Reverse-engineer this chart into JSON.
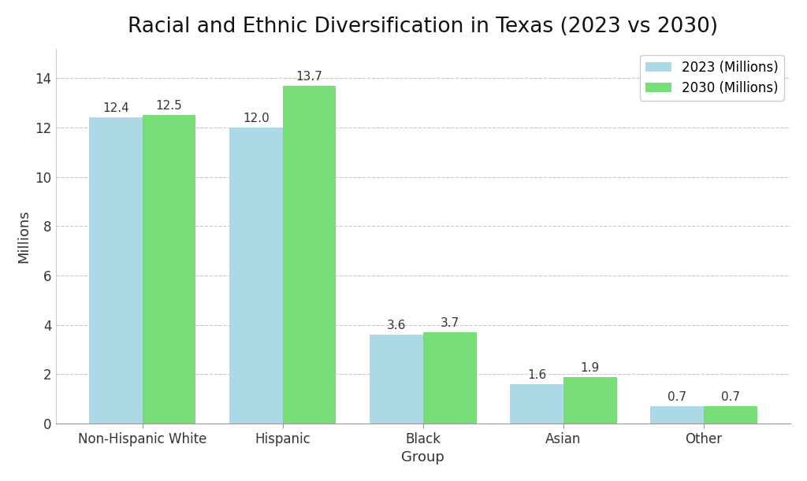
{
  "title": "Racial and Ethnic Diversification in Texas (2023 vs 2030)",
  "xlabel": "Group",
  "ylabel": "Millions",
  "categories": [
    "Non-Hispanic White",
    "Hispanic",
    "Black",
    "Asian",
    "Other"
  ],
  "values_2023": [
    12.4,
    12.0,
    3.6,
    1.6,
    0.7
  ],
  "values_2030": [
    12.5,
    13.7,
    3.7,
    1.9,
    0.7
  ],
  "color_2023": "#ADD8E6",
  "color_2030": "#77DD77",
  "legend_2023": "2023 (Millions)",
  "legend_2030": "2030 (Millions)",
  "ylim": [
    0,
    15.2
  ],
  "yticks": [
    0,
    2,
    4,
    6,
    8,
    10,
    12,
    14
  ],
  "bar_width": 0.38,
  "title_fontsize": 19,
  "label_fontsize": 13,
  "tick_fontsize": 12,
  "annotation_fontsize": 11,
  "background_color": "#ffffff",
  "grid_color": "#bbbbbb",
  "grid_linestyle": "--",
  "grid_alpha": 0.8
}
